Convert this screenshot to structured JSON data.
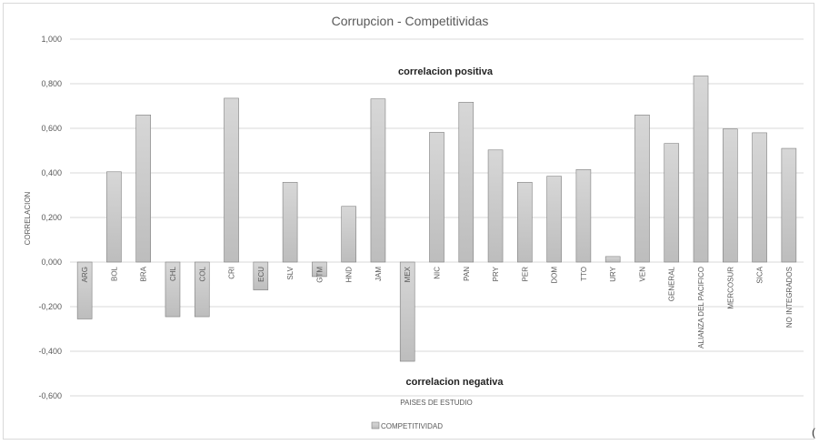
{
  "chart_data": {
    "type": "bar",
    "title": "Corrupcion  - Competitividas",
    "xlabel": "PAISES DE ESTUDIO",
    "ylabel": "CORRELACION",
    "ylim": [
      -0.6,
      1.0
    ],
    "yticks": [
      -0.6,
      -0.4,
      -0.2,
      0.0,
      0.2,
      0.4,
      0.6,
      0.8,
      1.0
    ],
    "ytick_labels": [
      "-0,600",
      "-0,400",
      "-0,200",
      "0,000",
      "0,200",
      "0,400",
      "0,600",
      "0,800",
      "1,000"
    ],
    "categories": [
      "ARG",
      "BOL",
      "BRA",
      "CHL",
      "COL",
      "CRI",
      "ECU",
      "SLV",
      "GTM",
      "HND",
      "JAM",
      "MEX",
      "NIC",
      "PAN",
      "PRY",
      "PER",
      "DOM",
      "TTO",
      "URY",
      "VEN",
      "GENERAL",
      "ALIANZA DEL PACIFICO",
      "MERCOSUR",
      "SICA",
      "NO INTEGRADOS"
    ],
    "series": [
      {
        "name": "COMPETITIVIDAD",
        "values": [
          -0.255,
          0.405,
          0.66,
          -0.245,
          -0.245,
          0.735,
          -0.125,
          0.358,
          -0.065,
          0.25,
          0.732,
          -0.445,
          0.582,
          0.717,
          0.503,
          0.358,
          0.385,
          0.415,
          0.025,
          0.66,
          0.532,
          0.835,
          0.597,
          0.58,
          0.51
        ]
      }
    ],
    "annotations": [
      "correlacion positiva",
      "correlacion negativa"
    ],
    "grid": true,
    "legend_position": "bottom",
    "colors": {
      "bar_top": "#d7d7d7",
      "bar_bottom": "#bdbdbd",
      "bar_border": "#7f7f7f",
      "grid": "#d9d9d9",
      "text": "#595959"
    }
  },
  "trailing_text": "("
}
